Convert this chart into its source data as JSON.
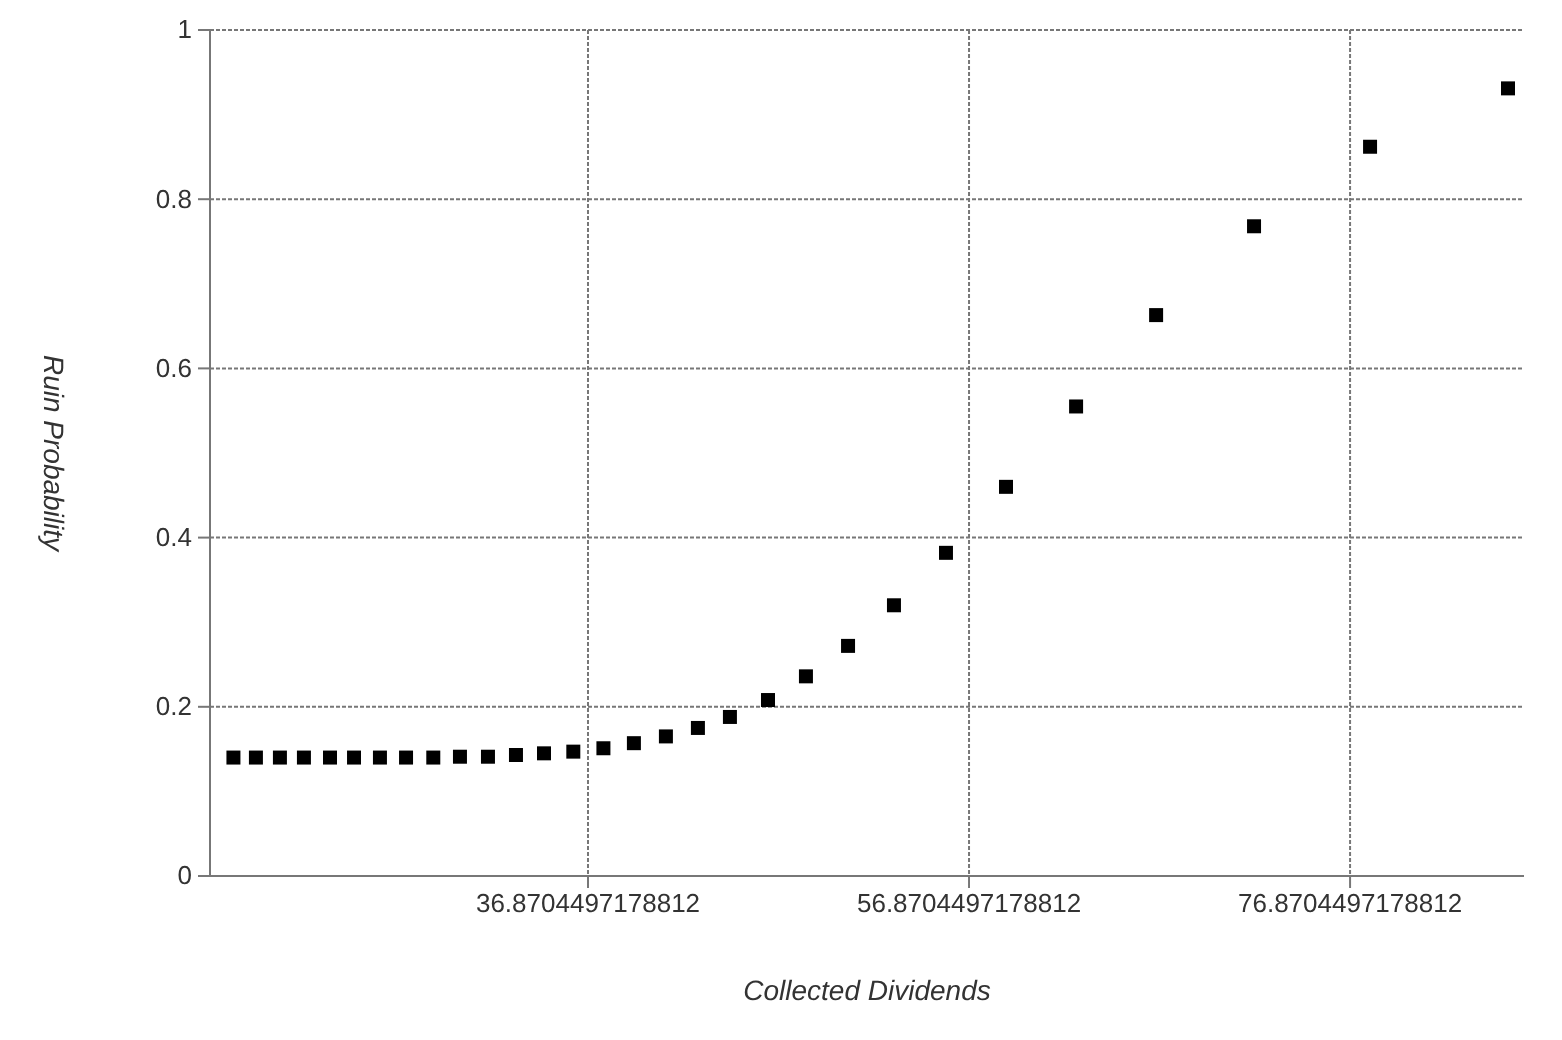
{
  "chart_data": {
    "type": "scatter",
    "xlabel": "Collected Dividends",
    "ylabel": "Ruin Probability",
    "x": [
      18.26,
      19.44,
      20.7,
      21.96,
      23.33,
      24.59,
      25.95,
      27.32,
      28.75,
      30.15,
      31.62,
      33.09,
      34.56,
      36.1,
      37.68,
      39.28,
      40.96,
      42.64,
      44.32,
      46.32,
      48.31,
      50.52,
      52.93,
      55.66,
      58.81,
      62.49,
      66.69,
      71.83,
      77.92,
      85.16
    ],
    "series": [
      {
        "color": "#000000",
        "values": [
          0.14,
          0.14,
          0.14,
          0.14,
          0.14,
          0.14,
          0.14,
          0.14,
          0.14,
          0.141,
          0.141,
          0.143,
          0.145,
          0.147,
          0.151,
          0.157,
          0.165,
          0.175,
          0.188,
          0.208,
          0.236,
          0.272,
          0.32,
          0.382,
          0.46,
          0.555,
          0.663,
          0.768,
          0.862,
          0.931
        ]
      }
    ],
    "xlim": [
      17.03,
      86.0
    ],
    "xticks": [
      {
        "value": 36.8704497178812,
        "label": "36.8704497178812"
      },
      {
        "value": 56.8704497178812,
        "label": "56.8704497178812"
      },
      {
        "value": 76.8704497178812,
        "label": "76.8704497178812"
      }
    ],
    "ylim": [
      0,
      1
    ],
    "yticks": [
      0,
      0.2,
      0.4,
      0.6,
      0.8,
      1
    ],
    "grid": true,
    "marker": "square"
  }
}
